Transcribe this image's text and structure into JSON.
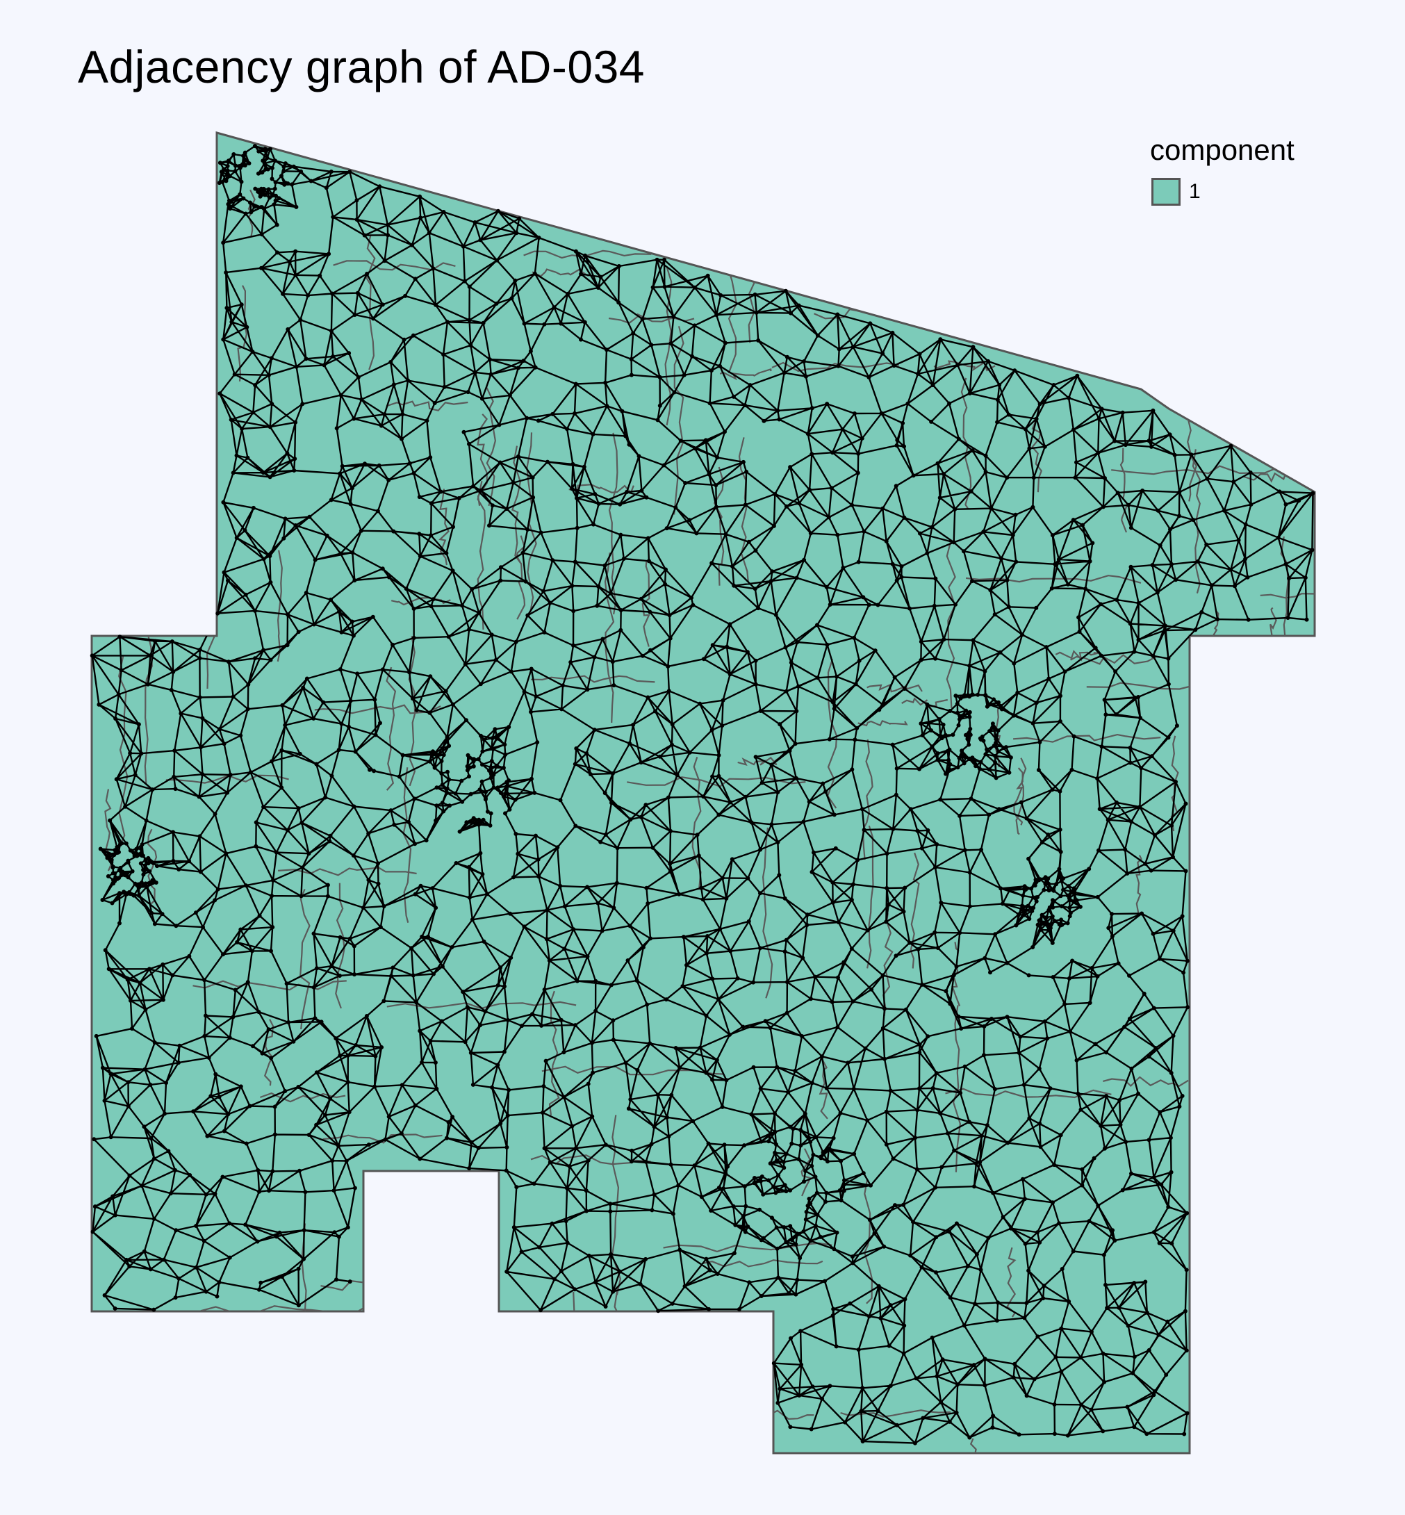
{
  "title": "Adjacency graph of AD-034",
  "legend": {
    "title": "component",
    "items": [
      {
        "label": "1",
        "color": "#7ccbb9"
      }
    ]
  },
  "colors": {
    "background": "#f5f7fe",
    "region_fill": "#7ccbb9",
    "region_border": "#555555",
    "precinct_border": "#5a5a5a",
    "edge": "#000000",
    "node": "#000000"
  }
}
